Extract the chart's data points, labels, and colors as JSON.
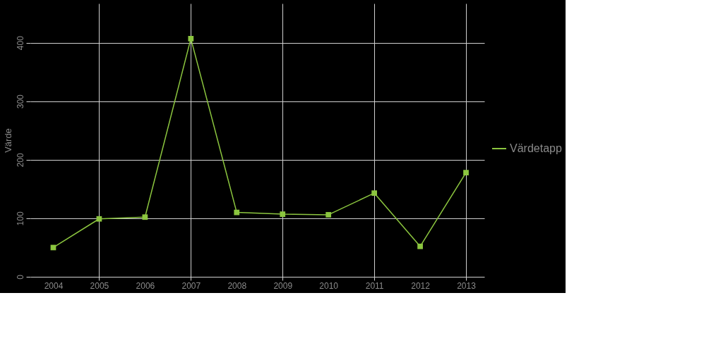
{
  "chart_data": {
    "type": "line",
    "ylabel": "Värde",
    "x": [
      2004,
      2005,
      2006,
      2007,
      2008,
      2009,
      2010,
      2011,
      2012,
      2013
    ],
    "series": [
      {
        "name": "Värdetapp",
        "color": "#8cc63f",
        "values": [
          50,
          99,
          102,
          407,
          110,
          107,
          106,
          143,
          52,
          178
        ]
      }
    ],
    "xlim": [
      2003.5,
      2013.4
    ],
    "xticks": [
      2004,
      2005,
      2006,
      2007,
      2008,
      2009,
      2010,
      2011,
      2012,
      2013
    ],
    "ylim": [
      0,
      467
    ],
    "yticks": [
      0,
      100,
      200,
      300,
      400
    ],
    "grid": true,
    "legend": "right",
    "marker": "square",
    "line_style": "solid"
  }
}
